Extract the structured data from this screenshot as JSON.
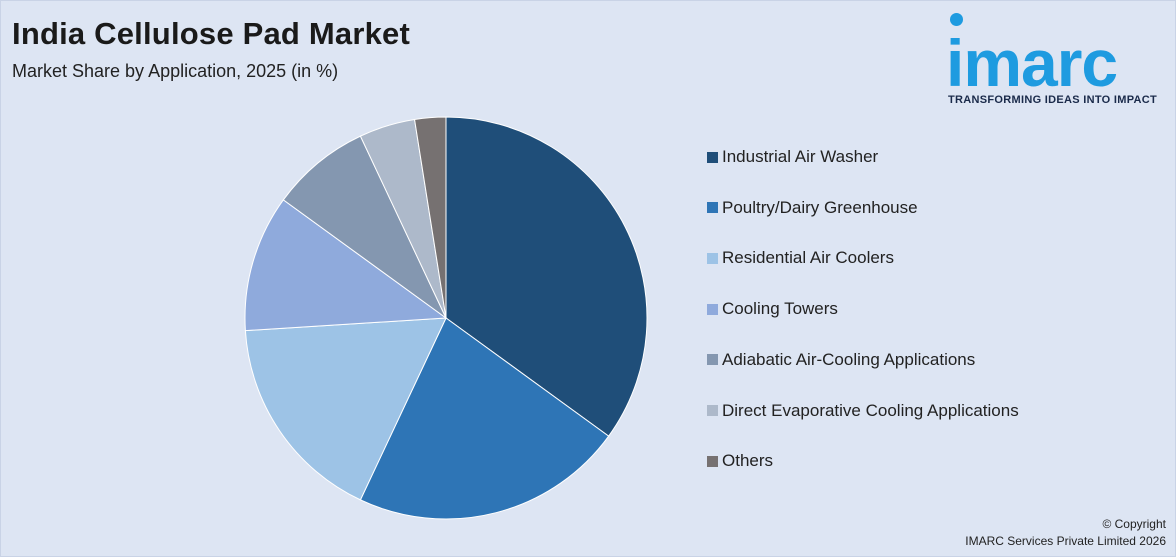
{
  "header": {
    "title": "India Cellulose Pad Market",
    "subtitle": "Market Share by Application, 2025 (in %)"
  },
  "logo": {
    "word": "imarc",
    "tagline": "TRANSFORMING IDEAS INTO IMPACT",
    "color": "#1e9be0"
  },
  "chart_data": {
    "type": "pie",
    "title": "India Cellulose Pad Market",
    "subtitle": "Market Share by Application, 2025 (in %)",
    "legend_position": "right",
    "start_angle_deg": 0,
    "direction": "clockwise",
    "categories": [
      "Industrial Air Washer",
      "Poultry/Dairy Greenhouse",
      "Residential Air Coolers",
      "Cooling Towers",
      "Adiabatic Air-Cooling Applications",
      "Direct Evaporative Cooling Applications",
      "Others"
    ],
    "values": [
      35,
      22,
      17,
      11,
      8,
      4.5,
      2.5
    ],
    "colors": [
      "#1f4e79",
      "#2e75b6",
      "#9dc3e6",
      "#8faadc",
      "#8497b0",
      "#adb9ca",
      "#767171"
    ]
  },
  "footer": {
    "line1": "© Copyright",
    "line2": "IMARC Services Private Limited 2026"
  }
}
